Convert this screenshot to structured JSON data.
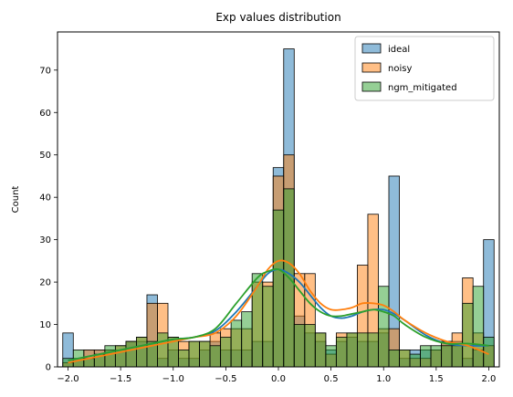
{
  "chart_data": {
    "type": "bar",
    "title": "Exp values distribution",
    "xlabel": "",
    "ylabel": "Count",
    "xlim": [
      -2.1,
      2.1
    ],
    "ylim": [
      0,
      79
    ],
    "xticks": [
      -2.0,
      -1.5,
      -1.0,
      -0.5,
      0.0,
      0.5,
      1.0,
      1.5,
      2.0
    ],
    "xtick_labels": [
      "−2.0",
      "−1.5",
      "−1.0",
      "−0.5",
      "0.0",
      "0.5",
      "1.0",
      "1.5",
      "2.0"
    ],
    "yticks": [
      0,
      10,
      20,
      30,
      40,
      50,
      60,
      70
    ],
    "yticks_labels": [
      "0",
      "10",
      "20",
      "30",
      "40",
      "50",
      "60",
      "70"
    ],
    "grid": false,
    "legend_position": "top-right",
    "bin_start": -2.0,
    "bin_width": 0.1,
    "series": [
      {
        "name": "ideal",
        "color": "#1f77b4",
        "values": [
          8,
          2,
          4,
          4,
          4,
          4,
          6,
          6,
          17,
          2,
          4,
          2,
          2,
          4,
          6,
          4,
          4,
          4,
          6,
          6,
          47,
          75,
          12,
          8,
          6,
          4,
          6,
          7,
          6,
          6,
          8,
          45,
          2,
          4,
          4,
          4,
          6,
          6,
          2,
          4,
          30
        ]
      },
      {
        "name": "noisy",
        "color": "#ff7f0e",
        "values": [
          1,
          2,
          4,
          4,
          4,
          5,
          6,
          7,
          15,
          15,
          7,
          6,
          6,
          6,
          8,
          9,
          9,
          9,
          20,
          20,
          45,
          50,
          22,
          22,
          8,
          3,
          8,
          8,
          24,
          36,
          9,
          9,
          4,
          2,
          2,
          4,
          6,
          8,
          21,
          8,
          5
        ]
      },
      {
        "name": "ngm_mitigated",
        "color": "#2ca02c",
        "values": [
          2,
          4,
          2,
          3,
          5,
          5,
          6,
          7,
          6,
          8,
          7,
          4,
          6,
          6,
          5,
          7,
          11,
          13,
          22,
          19,
          37,
          42,
          10,
          10,
          8,
          5,
          7,
          8,
          8,
          8,
          19,
          4,
          4,
          3,
          5,
          5,
          5,
          5,
          15,
          19,
          7
        ]
      }
    ],
    "kde": [
      {
        "name": "ideal",
        "color": "#1f77b4",
        "x": [
          -2.0,
          -1.8,
          -1.6,
          -1.4,
          -1.2,
          -1.0,
          -0.8,
          -0.6,
          -0.4,
          -0.2,
          -0.1,
          0.0,
          0.1,
          0.2,
          0.3,
          0.4,
          0.5,
          0.6,
          0.7,
          0.8,
          0.9,
          1.0,
          1.1,
          1.2,
          1.4,
          1.6,
          1.8,
          2.0
        ],
        "y": [
          1.5,
          2.5,
          3.5,
          4.5,
          5.5,
          6.5,
          7.0,
          8.5,
          13,
          19,
          22,
          23,
          22,
          20,
          17,
          14,
          12,
          11.5,
          12,
          13,
          13.5,
          13.5,
          12.5,
          11,
          7.5,
          5.5,
          5,
          5
        ]
      },
      {
        "name": "noisy",
        "color": "#ff7f0e",
        "x": [
          -2.0,
          -1.8,
          -1.6,
          -1.4,
          -1.2,
          -1.0,
          -0.8,
          -0.6,
          -0.4,
          -0.2,
          -0.1,
          0.0,
          0.1,
          0.2,
          0.3,
          0.4,
          0.5,
          0.6,
          0.7,
          0.8,
          0.9,
          1.0,
          1.1,
          1.2,
          1.4,
          1.6,
          1.8,
          2.0
        ],
        "y": [
          1.0,
          2.0,
          3.0,
          4.0,
          5.0,
          6.0,
          7.0,
          8.0,
          12,
          19,
          23,
          25,
          24.5,
          22,
          18,
          15,
          13.5,
          13.5,
          14,
          15,
          15,
          14.5,
          13,
          11,
          8,
          6,
          5,
          3
        ]
      },
      {
        "name": "ngm_mitigated",
        "color": "#2ca02c",
        "x": [
          -2.0,
          -1.8,
          -1.6,
          -1.4,
          -1.2,
          -1.0,
          -0.8,
          -0.6,
          -0.4,
          -0.2,
          -0.1,
          0.0,
          0.1,
          0.2,
          0.3,
          0.4,
          0.5,
          0.6,
          0.7,
          0.8,
          0.9,
          1.0,
          1.1,
          1.2,
          1.4,
          1.6,
          1.8,
          2.0
        ],
        "y": [
          1.5,
          2.5,
          3.5,
          4.5,
          5.5,
          6.5,
          7.0,
          9.0,
          15,
          21,
          22.5,
          23,
          21,
          18,
          15,
          13,
          12,
          12,
          12.5,
          13,
          13.5,
          13,
          12,
          10,
          7,
          5.5,
          5.5,
          5
        ]
      }
    ]
  }
}
